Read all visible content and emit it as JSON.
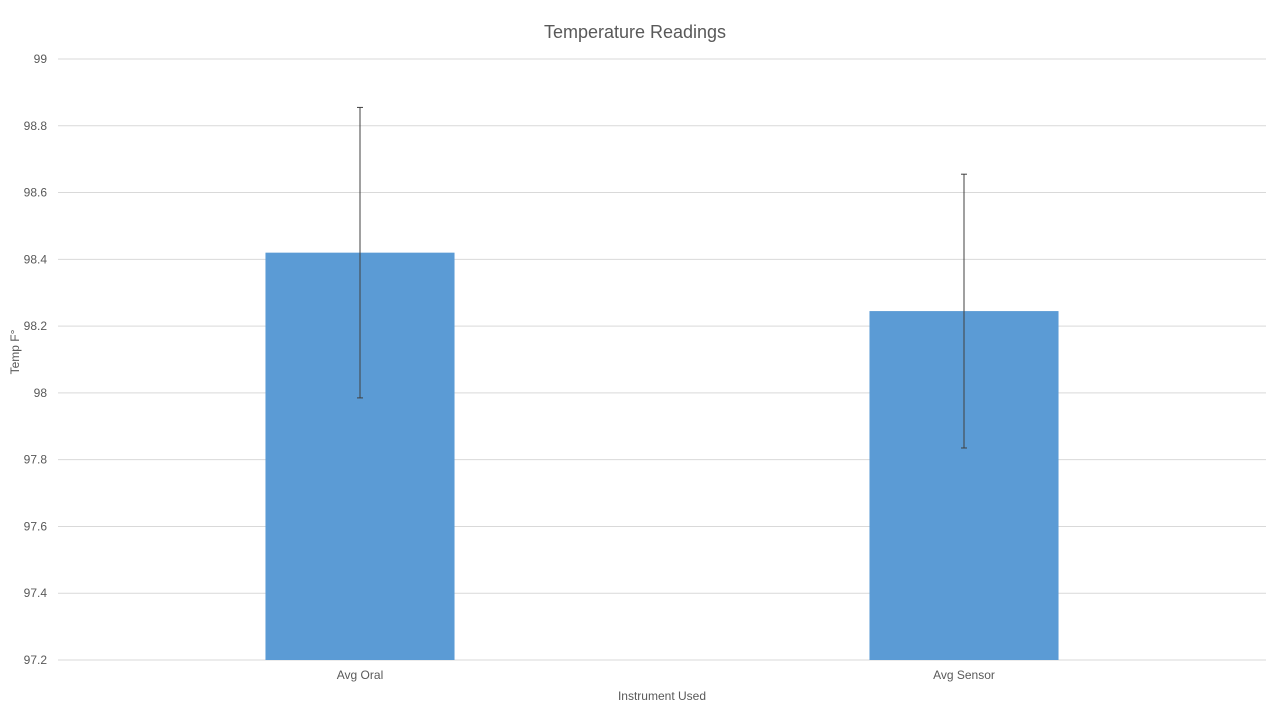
{
  "chart_data": {
    "type": "bar",
    "title": "Temperature Readings",
    "xlabel": "Instrument Used",
    "ylabel": "Temp F°",
    "categories": [
      "Avg Oral",
      "Avg Sensor"
    ],
    "values": [
      98.42,
      98.245
    ],
    "error_bars": [
      {
        "low": 97.985,
        "high": 98.855
      },
      {
        "low": 97.835,
        "high": 98.655
      }
    ],
    "ylim": [
      97.2,
      99
    ],
    "yticks": [
      "97.2",
      "97.4",
      "97.6",
      "97.8",
      "98",
      "98.2",
      "98.4",
      "98.6",
      "98.8",
      "99"
    ],
    "grid": true,
    "legend": "none",
    "colors": {
      "bar": "#5b9bd5",
      "grid": "#d9d9d9",
      "error_bar": "#404040",
      "text": "#595959"
    }
  }
}
